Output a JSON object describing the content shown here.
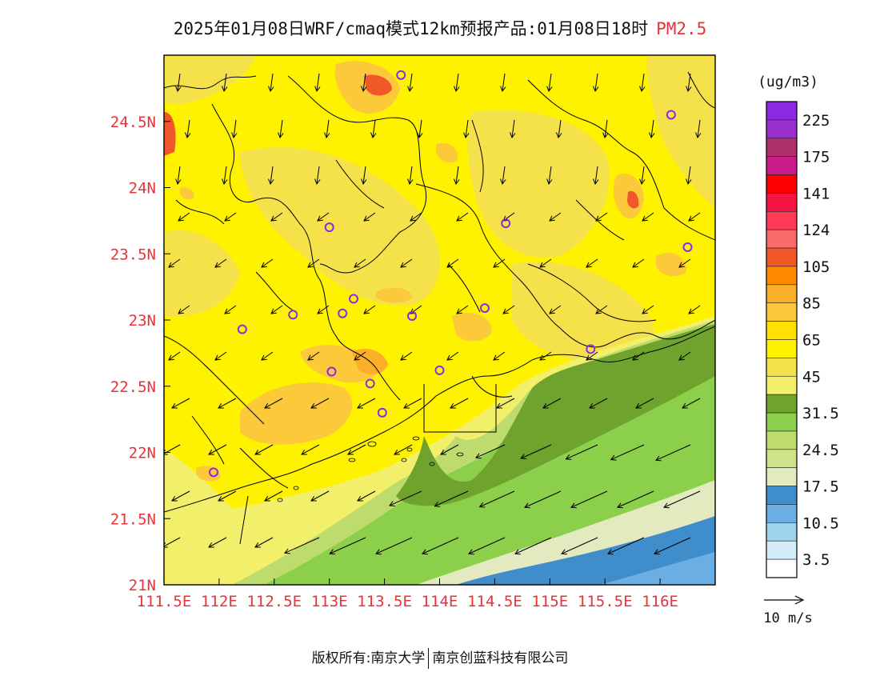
{
  "title": {
    "main": "2025年01月08日WRF/cmaq模式12km预报产品:01月08日18时",
    "pollutant": "PM2.5"
  },
  "axes": {
    "lon_labels": [
      "111.5E",
      "112E",
      "112.5E",
      "113E",
      "113.5E",
      "114E",
      "114.5E",
      "115E",
      "115.5E",
      "116E"
    ],
    "lat_labels": [
      "24.5N",
      "24N",
      "23.5N",
      "23N",
      "22.5N",
      "22N",
      "21.5N",
      "21N"
    ],
    "label_color": "#e8333b"
  },
  "legend": {
    "unit": "(ug/m3)",
    "colors": [
      "#8a2be2",
      "#9b30d0",
      "#b0306a",
      "#cc1a8c",
      "#ff0000",
      "#f51440",
      "#ff3a55",
      "#fb6a6a",
      "#f0582a",
      "#ff8a00",
      "#fbae28",
      "#fbc93a",
      "#ffe000",
      "#fff200",
      "#f5e24a",
      "#f2f06a",
      "#6fa32d",
      "#8ccf4a",
      "#bddc6d",
      "#cde28a",
      "#e3eac0",
      "#3f8dcb",
      "#6aaee3",
      "#9fd4ef",
      "#d3eef8",
      "#ffffff"
    ],
    "labels": [
      "225",
      "175",
      "141",
      "124",
      "105",
      "85",
      "65",
      "45",
      "31.5",
      "24.5",
      "17.5",
      "10.5",
      "3.5"
    ],
    "vector_ref": "10 m/s"
  },
  "stations": [
    {
      "lon": 113.65,
      "lat": 24.85
    },
    {
      "lon": 116.1,
      "lat": 24.55
    },
    {
      "lon": 113.0,
      "lat": 23.7
    },
    {
      "lon": 114.6,
      "lat": 23.73
    },
    {
      "lon": 116.25,
      "lat": 23.55
    },
    {
      "lon": 113.22,
      "lat": 23.16
    },
    {
      "lon": 113.12,
      "lat": 23.05
    },
    {
      "lon": 112.67,
      "lat": 23.04
    },
    {
      "lon": 112.21,
      "lat": 22.93
    },
    {
      "lon": 113.75,
      "lat": 23.03
    },
    {
      "lon": 114.41,
      "lat": 23.09
    },
    {
      "lon": 115.37,
      "lat": 22.78
    },
    {
      "lon": 113.02,
      "lat": 22.61
    },
    {
      "lon": 113.37,
      "lat": 22.52
    },
    {
      "lon": 114.0,
      "lat": 22.62
    },
    {
      "lon": 113.48,
      "lat": 22.3
    },
    {
      "lon": 111.95,
      "lat": 21.85
    }
  ],
  "footer": {
    "left": "版权所有:南京大学",
    "right": "南京创蓝科技有限公司"
  }
}
